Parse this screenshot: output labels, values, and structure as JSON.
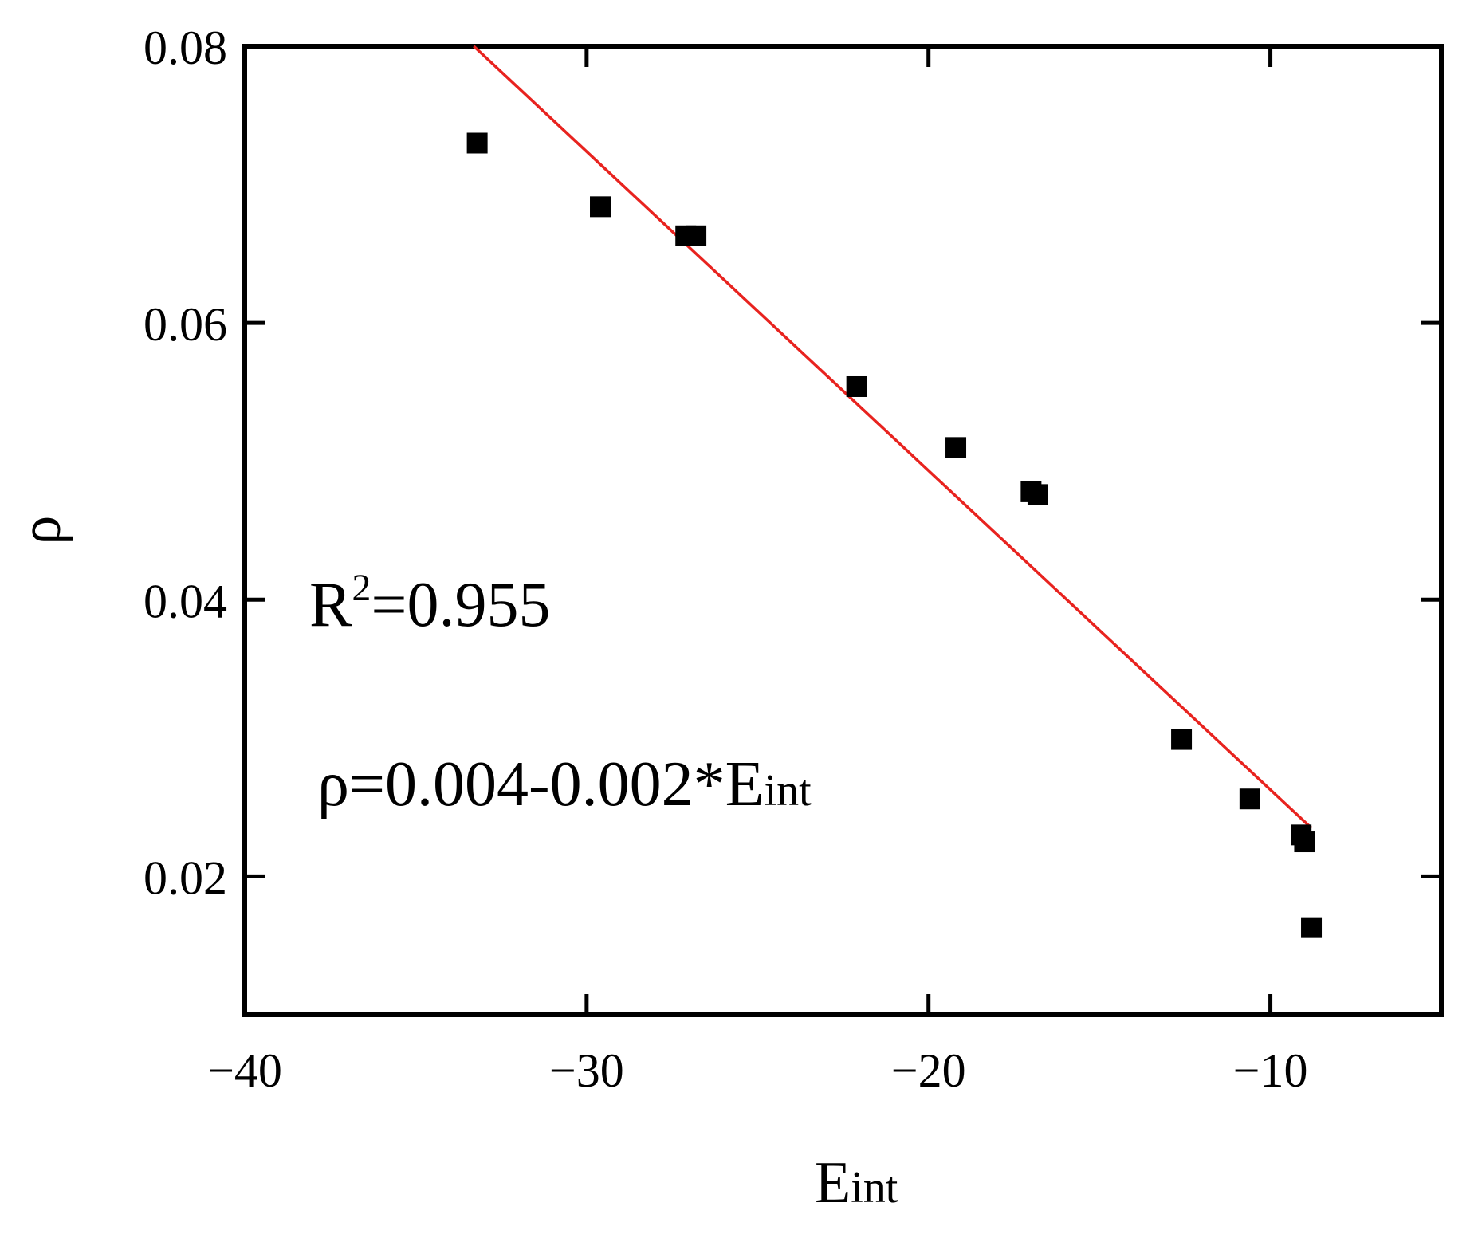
{
  "chart_data": {
    "type": "scatter",
    "xlabel": "E",
    "xlabel_subscript": "int",
    "ylabel": "ρ",
    "xlim": [
      -40,
      -5
    ],
    "ylim": [
      0.01,
      0.08
    ],
    "x_ticks": [
      -40,
      -30,
      -20,
      -10
    ],
    "x_tick_labels": [
      "−40",
      "−30",
      "−20",
      "−10"
    ],
    "y_ticks": [
      0.02,
      0.04,
      0.06,
      0.08
    ],
    "y_tick_labels": [
      "0.02",
      "0.04",
      "0.06",
      "0.08"
    ],
    "grid": false,
    "marker": "square",
    "marker_color": "#000000",
    "points": [
      {
        "x": -33.2,
        "y": 0.073
      },
      {
        "x": -29.6,
        "y": 0.0684
      },
      {
        "x": -27.1,
        "y": 0.0663
      },
      {
        "x": -26.8,
        "y": 0.0663
      },
      {
        "x": -22.1,
        "y": 0.0554
      },
      {
        "x": -19.2,
        "y": 0.051
      },
      {
        "x": -17.0,
        "y": 0.0478
      },
      {
        "x": -16.8,
        "y": 0.0476
      },
      {
        "x": -12.6,
        "y": 0.0299
      },
      {
        "x": -10.6,
        "y": 0.0256
      },
      {
        "x": -9.1,
        "y": 0.023
      },
      {
        "x": -9.0,
        "y": 0.0225
      },
      {
        "x": -8.8,
        "y": 0.0163
      }
    ],
    "fit_line": {
      "color": "#e8231f",
      "x": [
        -33.3,
        -8.8
      ],
      "y": [
        0.08,
        0.0235
      ]
    },
    "annotations": {
      "r2_main": "R",
      "r2_sup": "2",
      "r2_value": "=0.955",
      "equation_main": "ρ=0.004-0.002*E",
      "equation_sub": "int"
    }
  }
}
